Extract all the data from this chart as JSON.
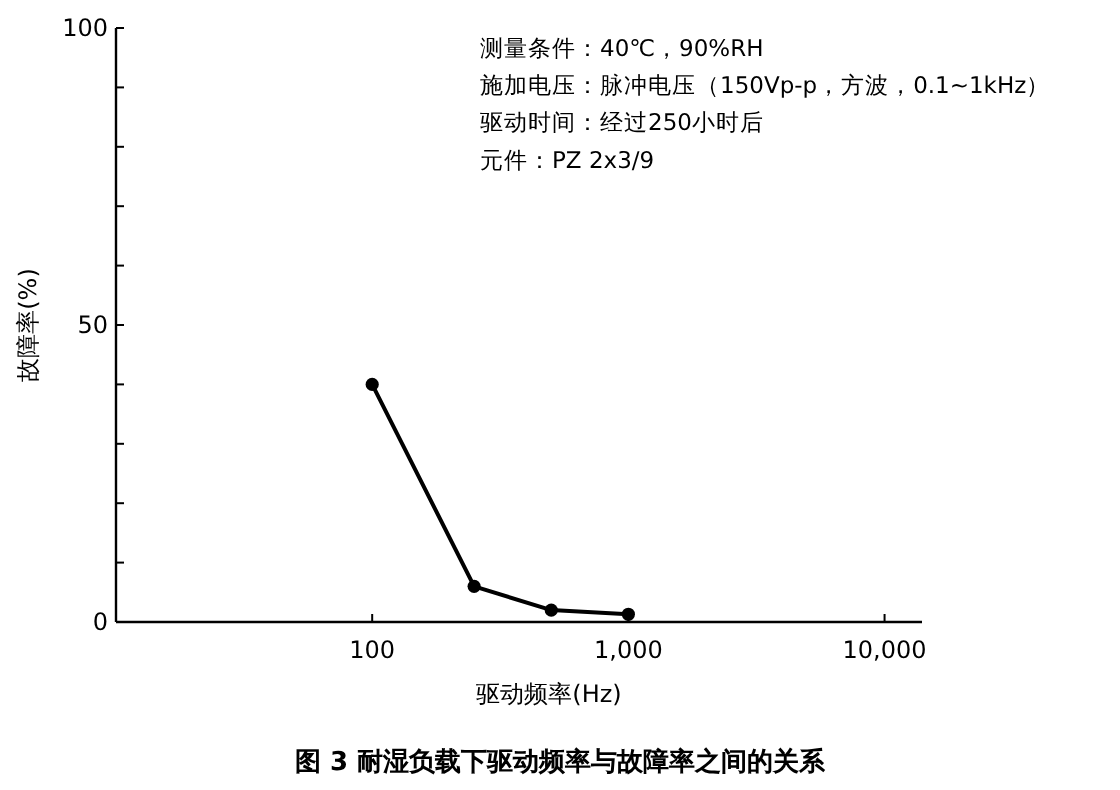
{
  "chart_data": {
    "type": "line",
    "title": "图 3 耐湿负载下驱动频率与故障率之间的关系",
    "xlabel": "驱动频率(Hz)",
    "ylabel": "故障率(%)",
    "annotations": [
      "测量条件：40℃，90%RH",
      "施加电压：脉冲电压（150Vp-p，方波，0.1~1kHz）",
      "驱动时间：经过250小时后",
      "元件：PZ 2x3/9"
    ],
    "x": [
      100,
      250,
      500,
      1000
    ],
    "log": "x",
    "series": [
      {
        "color": "#000000",
        "values": [
          40,
          6,
          2,
          1.3
        ]
      }
    ],
    "xlim": [
      10,
      14000
    ],
    "xticks": [
      100,
      {
        "value": 1000,
        "label": "1,000"
      },
      {
        "value": 10000,
        "label": "10,000"
      }
    ],
    "ylim": [
      0,
      100
    ],
    "yticks": [
      0,
      {
        "value": 10,
        "label": null
      },
      {
        "value": 20,
        "label": null
      },
      {
        "value": 30,
        "label": null
      },
      {
        "value": 40,
        "label": null
      },
      50,
      {
        "value": 60,
        "label": null
      },
      {
        "value": 70,
        "label": null
      },
      {
        "value": 80,
        "label": null
      },
      {
        "value": 90,
        "label": null
      },
      100
    ],
    "marker": "circle",
    "line_style": "solid"
  }
}
